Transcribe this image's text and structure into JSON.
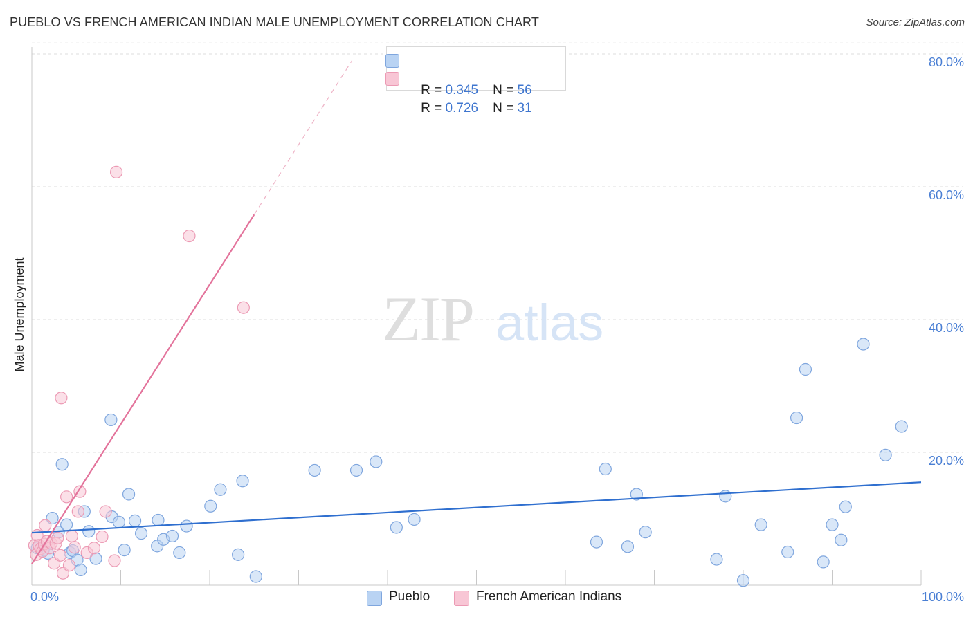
{
  "title": "PUEBLO VS FRENCH AMERICAN INDIAN MALE UNEMPLOYMENT CORRELATION CHART",
  "source": "Source: ZipAtlas.com",
  "watermark": {
    "zip": "ZIP",
    "atlas": "atlas"
  },
  "legend": {
    "rows": [
      {
        "r_label": "R = ",
        "r_value": "0.345",
        "n_label": "N = ",
        "n_value": "56"
      },
      {
        "r_label": "R = ",
        "r_value": "0.726",
        "n_label": "N = ",
        "n_value": "31"
      }
    ]
  },
  "bottom_legend": {
    "pueblo": "Pueblo",
    "french": "French American Indians"
  },
  "colors": {
    "pueblo_fill": "#b9d3f3",
    "pueblo_stroke": "#7fa6de",
    "pueblo_line": "#2f6fcf",
    "french_fill": "#f8c6d5",
    "french_stroke": "#ec9ab4",
    "french_line": "#e3739b",
    "grid": "#dddddd",
    "tick_text": "#4a7fd4"
  },
  "chart_data": {
    "type": "scatter",
    "title": "PUEBLO VS FRENCH AMERICAN INDIAN MALE UNEMPLOYMENT CORRELATION CHART",
    "xlabel": "",
    "ylabel": "Male Unemployment",
    "xlim": [
      0,
      100
    ],
    "ylim": [
      0,
      80
    ],
    "x_tick_labels": [
      "0.0%",
      "100.0%"
    ],
    "y_ticks": [
      {
        "value": 20,
        "label": "20.0%"
      },
      {
        "value": 40,
        "label": "40.0%"
      },
      {
        "value": 60,
        "label": "60.0%"
      },
      {
        "value": 80,
        "label": "80.0%"
      }
    ],
    "series": [
      {
        "name": "Pueblo",
        "r": 0.345,
        "n": 56,
        "trend": {
          "x": [
            0,
            100
          ],
          "y": [
            7.9,
            15.5
          ],
          "dashed_to": null
        },
        "points": [
          [
            0.6,
            5.6
          ],
          [
            1.3,
            5.3
          ],
          [
            1.8,
            4.8
          ],
          [
            2.3,
            10.1
          ],
          [
            3.0,
            8.0
          ],
          [
            3.4,
            18.2
          ],
          [
            3.9,
            9.1
          ],
          [
            4.3,
            4.9
          ],
          [
            4.6,
            5.2
          ],
          [
            5.1,
            3.8
          ],
          [
            5.5,
            2.3
          ],
          [
            5.9,
            11.1
          ],
          [
            6.4,
            8.1
          ],
          [
            7.2,
            4.0
          ],
          [
            8.9,
            24.9
          ],
          [
            9.0,
            10.3
          ],
          [
            9.8,
            9.5
          ],
          [
            10.4,
            5.3
          ],
          [
            10.9,
            13.7
          ],
          [
            11.6,
            9.7
          ],
          [
            12.3,
            7.8
          ],
          [
            14.1,
            5.9
          ],
          [
            14.2,
            9.8
          ],
          [
            14.8,
            6.9
          ],
          [
            15.8,
            7.4
          ],
          [
            16.6,
            4.9
          ],
          [
            17.4,
            8.9
          ],
          [
            20.1,
            11.9
          ],
          [
            21.2,
            14.4
          ],
          [
            23.2,
            4.6
          ],
          [
            23.7,
            15.7
          ],
          [
            25.2,
            1.3
          ],
          [
            31.8,
            17.3
          ],
          [
            36.5,
            17.3
          ],
          [
            38.7,
            18.6
          ],
          [
            41.0,
            8.7
          ],
          [
            43.0,
            9.9
          ],
          [
            63.5,
            6.5
          ],
          [
            64.5,
            17.5
          ],
          [
            67.0,
            5.8
          ],
          [
            68.0,
            13.7
          ],
          [
            69.0,
            8.0
          ],
          [
            77.0,
            3.9
          ],
          [
            78.0,
            13.4
          ],
          [
            80.0,
            0.7
          ],
          [
            82.0,
            9.1
          ],
          [
            85.0,
            5.0
          ],
          [
            86.0,
            25.2
          ],
          [
            87.0,
            32.5
          ],
          [
            89.0,
            3.5
          ],
          [
            90.0,
            9.1
          ],
          [
            91.0,
            6.8
          ],
          [
            91.5,
            11.8
          ],
          [
            93.5,
            36.3
          ],
          [
            96.0,
            19.6
          ],
          [
            97.8,
            23.9
          ]
        ]
      },
      {
        "name": "French American Indians",
        "r": 0.726,
        "n": 31,
        "trend": {
          "x": [
            0,
            25
          ],
          "y": [
            3.2,
            55.8
          ],
          "dashed_to": {
            "x": 36,
            "y": 79.0
          }
        },
        "points": [
          [
            0.3,
            6.0
          ],
          [
            0.5,
            4.6
          ],
          [
            0.6,
            7.5
          ],
          [
            0.8,
            6.0
          ],
          [
            1.0,
            5.5
          ],
          [
            1.2,
            5.1
          ],
          [
            1.4,
            6.2
          ],
          [
            1.5,
            9.0
          ],
          [
            1.7,
            6.6
          ],
          [
            2.0,
            5.6
          ],
          [
            2.2,
            6.3
          ],
          [
            2.5,
            3.3
          ],
          [
            2.7,
            6.3
          ],
          [
            2.9,
            7.1
          ],
          [
            3.2,
            4.5
          ],
          [
            3.3,
            28.2
          ],
          [
            3.5,
            1.8
          ],
          [
            3.9,
            13.3
          ],
          [
            4.2,
            3.0
          ],
          [
            4.5,
            7.4
          ],
          [
            4.8,
            5.7
          ],
          [
            5.2,
            11.1
          ],
          [
            5.4,
            14.1
          ],
          [
            6.2,
            4.9
          ],
          [
            7.0,
            5.6
          ],
          [
            7.9,
            7.3
          ],
          [
            8.3,
            11.1
          ],
          [
            9.3,
            3.7
          ],
          [
            9.5,
            62.2
          ],
          [
            17.7,
            52.6
          ],
          [
            23.8,
            41.8
          ]
        ]
      }
    ]
  }
}
